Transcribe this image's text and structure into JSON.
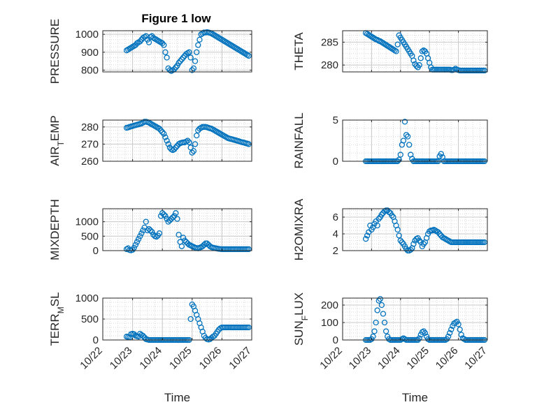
{
  "figure": {
    "title": "Figure 1 low",
    "xlabel": "Time",
    "marker_color": "#0072BD",
    "x_ticks": [
      "10/22",
      "10/23",
      "10/24",
      "10/25",
      "10/26",
      "10/27"
    ]
  },
  "chart_data": [
    {
      "type": "scatter",
      "ylabel": "PRESSURE",
      "ylim": [
        790,
        1020
      ],
      "yticks": [
        800,
        900,
        1000
      ],
      "grid": true,
      "x_unit": "days since 10/22",
      "x": [
        0.8,
        0.85,
        0.9,
        0.95,
        1.0,
        1.05,
        1.1,
        1.15,
        1.2,
        1.25,
        1.3,
        1.35,
        1.4,
        1.45,
        1.5,
        1.55,
        1.6,
        1.65,
        1.7,
        1.75,
        1.8,
        1.85,
        1.9,
        1.95,
        2.0,
        2.05,
        2.1,
        2.15,
        2.2,
        2.25,
        2.3,
        2.35,
        2.4,
        2.45,
        2.5,
        2.55,
        2.6,
        2.65,
        2.7,
        2.75,
        2.8,
        2.85,
        2.9,
        2.95,
        3.0,
        3.05,
        3.1,
        3.15,
        3.2,
        3.25,
        3.3,
        3.35,
        3.4,
        3.45,
        3.5,
        3.55,
        3.6,
        3.65,
        3.7,
        3.75,
        3.8,
        3.85,
        3.9,
        3.95,
        4.0,
        4.05,
        4.1,
        4.15,
        4.2,
        4.25,
        4.3,
        4.35,
        4.4,
        4.45,
        4.5,
        4.55,
        4.6,
        4.65,
        4.7,
        4.75,
        4.8,
        4.85,
        4.9
      ],
      "y": [
        910,
        915,
        920,
        925,
        930,
        935,
        940,
        950,
        955,
        960,
        970,
        980,
        985,
        990,
        970,
        955,
        985,
        990,
        980,
        975,
        970,
        965,
        960,
        955,
        950,
        940,
        900,
        870,
        810,
        800,
        795,
        800,
        805,
        815,
        825,
        840,
        850,
        860,
        870,
        880,
        890,
        895,
        900,
        870,
        800,
        810,
        850,
        900,
        940,
        970,
        1000,
        1005,
        1010,
        1010,
        1012,
        1010,
        1008,
        1005,
        1000,
        995,
        990,
        985,
        980,
        975,
        970,
        965,
        960,
        955,
        950,
        945,
        940,
        935,
        930,
        925,
        920,
        915,
        910,
        905,
        900,
        895,
        890,
        885,
        880
      ]
    },
    {
      "type": "scatter",
      "ylabel": "THETA",
      "ylim": [
        278.5,
        287.5
      ],
      "yticks": [
        280,
        285
      ],
      "grid": true,
      "x": [
        0.8,
        0.85,
        0.9,
        0.95,
        1.0,
        1.05,
        1.1,
        1.15,
        1.2,
        1.25,
        1.3,
        1.35,
        1.4,
        1.45,
        1.5,
        1.55,
        1.6,
        1.65,
        1.7,
        1.75,
        1.8,
        1.85,
        1.9,
        1.95,
        2.0,
        2.05,
        2.1,
        2.15,
        2.2,
        2.25,
        2.3,
        2.35,
        2.4,
        2.45,
        2.5,
        2.55,
        2.6,
        2.65,
        2.7,
        2.75,
        2.8,
        2.85,
        2.9,
        2.95,
        3.0,
        3.05,
        3.1,
        3.15,
        3.2,
        3.25,
        3.3,
        3.35,
        3.4,
        3.45,
        3.5,
        3.55,
        3.6,
        3.65,
        3.7,
        3.75,
        3.8,
        3.85,
        3.9,
        3.95,
        4.0,
        4.05,
        4.1,
        4.15,
        4.2,
        4.25,
        4.3,
        4.35,
        4.4,
        4.45,
        4.5,
        4.55,
        4.6,
        4.65,
        4.7,
        4.75,
        4.8,
        4.85,
        4.9
      ],
      "y": [
        287.0,
        286.8,
        286.6,
        286.4,
        286.2,
        286.0,
        285.8,
        285.6,
        285.5,
        285.3,
        285.2,
        285.0,
        284.8,
        284.6,
        284.4,
        284.2,
        284.0,
        283.8,
        283.6,
        283.4,
        283.2,
        283.0,
        284.5,
        286.5,
        286.0,
        285.5,
        285.0,
        284.5,
        284.0,
        283.5,
        283.0,
        282.5,
        282.0,
        281.0,
        280.2,
        279.8,
        279.5,
        280.0,
        281.5,
        283.0,
        283.2,
        283.0,
        282.5,
        281.5,
        280.5,
        279.5,
        279.0,
        279.0,
        279.0,
        279.0,
        279.0,
        279.0,
        279.0,
        279.0,
        279.0,
        279.0,
        279.0,
        279.0,
        279.0,
        278.9,
        278.9,
        279.0,
        279.2,
        279.0,
        278.9,
        278.8,
        278.8,
        278.8,
        278.8,
        278.8,
        278.8,
        278.8,
        278.8,
        278.8,
        278.8,
        278.8,
        278.8,
        278.8,
        278.8,
        278.8,
        278.8,
        278.8,
        278.8
      ]
    },
    {
      "type": "scatter",
      "ylabel": "AIR_TEMP",
      "ylim": [
        260,
        284
      ],
      "yticks": [
        260,
        270,
        280
      ],
      "grid": true,
      "x": [
        0.8,
        0.85,
        0.9,
        0.95,
        1.0,
        1.05,
        1.1,
        1.15,
        1.2,
        1.25,
        1.3,
        1.35,
        1.4,
        1.45,
        1.5,
        1.55,
        1.6,
        1.65,
        1.7,
        1.75,
        1.8,
        1.85,
        1.9,
        1.95,
        2.0,
        2.05,
        2.1,
        2.15,
        2.2,
        2.25,
        2.3,
        2.35,
        2.4,
        2.45,
        2.5,
        2.55,
        2.6,
        2.65,
        2.7,
        2.75,
        2.8,
        2.85,
        2.9,
        2.95,
        3.0,
        3.05,
        3.1,
        3.15,
        3.2,
        3.25,
        3.3,
        3.35,
        3.4,
        3.45,
        3.5,
        3.55,
        3.6,
        3.65,
        3.7,
        3.75,
        3.8,
        3.85,
        3.9,
        3.95,
        4.0,
        4.05,
        4.1,
        4.15,
        4.2,
        4.25,
        4.3,
        4.35,
        4.4,
        4.45,
        4.5,
        4.55,
        4.6,
        4.65,
        4.7,
        4.75,
        4.8,
        4.85,
        4.9
      ],
      "y": [
        279.5,
        279.7,
        280.0,
        280.3,
        280.5,
        280.8,
        281.0,
        281.3,
        281.5,
        281.8,
        282.0,
        282.5,
        283.0,
        283.0,
        282.8,
        282.5,
        282.0,
        281.5,
        281.0,
        280.5,
        280.0,
        279.5,
        279.0,
        278.0,
        277.0,
        276.0,
        274.0,
        272.0,
        270.0,
        268.0,
        267.0,
        266.5,
        267.0,
        268.0,
        269.0,
        270.0,
        270.5,
        270.8,
        271.0,
        271.0,
        271.5,
        272.0,
        271.0,
        268.0,
        265.0,
        266.0,
        270.0,
        275.0,
        278.0,
        279.0,
        279.5,
        280.0,
        280.0,
        280.0,
        279.8,
        279.5,
        279.2,
        279.0,
        278.5,
        278.0,
        277.5,
        277.0,
        276.5,
        276.0,
        275.5,
        275.0,
        274.5,
        274.0,
        273.5,
        273.2,
        273.0,
        272.8,
        272.5,
        272.3,
        272.0,
        271.8,
        271.5,
        271.2,
        271.0,
        270.8,
        270.5,
        270.3,
        270.0
      ]
    },
    {
      "type": "scatter",
      "ylabel": "RAINFALL",
      "ylim": [
        0,
        5
      ],
      "yticks": [
        0,
        5
      ],
      "grid": true,
      "x": [
        0.8,
        0.85,
        0.9,
        0.95,
        1.0,
        1.05,
        1.1,
        1.15,
        1.2,
        1.25,
        1.3,
        1.35,
        1.4,
        1.45,
        1.5,
        1.55,
        1.6,
        1.65,
        1.7,
        1.75,
        1.8,
        1.85,
        1.9,
        1.95,
        2.0,
        2.05,
        2.1,
        2.15,
        2.2,
        2.25,
        2.3,
        2.35,
        2.4,
        2.45,
        2.5,
        2.55,
        2.6,
        2.65,
        2.7,
        2.75,
        2.8,
        2.85,
        2.9,
        2.95,
        3.0,
        3.05,
        3.1,
        3.15,
        3.2,
        3.25,
        3.3,
        3.35,
        3.4,
        3.45,
        3.5,
        3.55,
        3.6,
        3.65,
        3.7,
        3.75,
        3.8,
        3.85,
        3.9,
        3.95,
        4.0,
        4.05,
        4.1,
        4.15,
        4.2,
        4.25,
        4.3,
        4.35,
        4.4,
        4.45,
        4.5,
        4.55,
        4.6,
        4.65,
        4.7,
        4.75,
        4.8,
        4.85,
        4.9
      ],
      "y": [
        0,
        0,
        0,
        0,
        0,
        0,
        0,
        0,
        0,
        0,
        0,
        0,
        0,
        0,
        0,
        0,
        0,
        0,
        0,
        0,
        0,
        0,
        0,
        0.2,
        0.8,
        2.0,
        2.5,
        4.8,
        3.2,
        3.0,
        2.0,
        0.8,
        0.3,
        0,
        0,
        0,
        0,
        0,
        0,
        0,
        0,
        0,
        0,
        0,
        0,
        0,
        0,
        0,
        0,
        0,
        0,
        0.6,
        0.9,
        0.5,
        0,
        0,
        0,
        0,
        0,
        0,
        0,
        0,
        0,
        0,
        0,
        0,
        0,
        0,
        0,
        0,
        0,
        0,
        0,
        0,
        0,
        0,
        0,
        0,
        0,
        0,
        0,
        0,
        0
      ]
    },
    {
      "type": "scatter",
      "ylabel": "MIXDEPTH",
      "ylim": [
        0,
        1450
      ],
      "yticks": [
        0,
        500,
        1000
      ],
      "grid": true,
      "x": [
        0.8,
        0.85,
        0.9,
        0.95,
        1.0,
        1.05,
        1.1,
        1.15,
        1.2,
        1.25,
        1.3,
        1.35,
        1.4,
        1.45,
        1.5,
        1.55,
        1.6,
        1.65,
        1.7,
        1.75,
        1.8,
        1.85,
        1.9,
        1.95,
        2.0,
        2.05,
        2.1,
        2.15,
        2.2,
        2.25,
        2.3,
        2.35,
        2.4,
        2.45,
        2.5,
        2.55,
        2.6,
        2.65,
        2.7,
        2.75,
        2.8,
        2.85,
        2.9,
        2.95,
        3.0,
        3.05,
        3.1,
        3.15,
        3.2,
        3.25,
        3.3,
        3.35,
        3.4,
        3.45,
        3.5,
        3.55,
        3.6,
        3.65,
        3.7,
        3.75,
        3.8,
        3.85,
        3.9,
        3.95,
        4.0,
        4.05,
        4.1,
        4.15,
        4.2,
        4.25,
        4.3,
        4.35,
        4.4,
        4.45,
        4.5,
        4.55,
        4.6,
        4.65,
        4.7,
        4.75,
        4.8,
        4.85,
        4.9
      ],
      "y": [
        50,
        80,
        20,
        10,
        30,
        100,
        200,
        300,
        400,
        500,
        600,
        700,
        800,
        1000,
        700,
        750,
        700,
        650,
        550,
        500,
        480,
        520,
        600,
        1200,
        1300,
        1250,
        1200,
        1100,
        1000,
        1050,
        1100,
        1150,
        1200,
        1300,
        1100,
        550,
        300,
        150,
        450,
        350,
        300,
        250,
        200,
        180,
        150,
        130,
        100,
        90,
        80,
        100,
        120,
        150,
        200,
        250,
        250,
        200,
        150,
        120,
        100,
        90,
        80,
        70,
        60,
        55,
        50,
        50,
        50,
        50,
        50,
        50,
        50,
        50,
        50,
        50,
        50,
        50,
        50,
        50,
        50,
        50,
        50,
        50,
        50
      ]
    },
    {
      "type": "scatter",
      "ylabel": "H2OMIXRA",
      "ylim": [
        2,
        7
      ],
      "yticks": [
        2,
        4,
        6
      ],
      "grid": true,
      "x": [
        0.8,
        0.85,
        0.9,
        0.95,
        1.0,
        1.05,
        1.1,
        1.15,
        1.2,
        1.25,
        1.3,
        1.35,
        1.4,
        1.45,
        1.5,
        1.55,
        1.6,
        1.65,
        1.7,
        1.75,
        1.8,
        1.85,
        1.9,
        1.95,
        2.0,
        2.05,
        2.1,
        2.15,
        2.2,
        2.25,
        2.3,
        2.35,
        2.4,
        2.45,
        2.5,
        2.55,
        2.6,
        2.65,
        2.7,
        2.75,
        2.8,
        2.85,
        2.9,
        2.95,
        3.0,
        3.05,
        3.1,
        3.15,
        3.2,
        3.25,
        3.3,
        3.35,
        3.4,
        3.45,
        3.5,
        3.55,
        3.6,
        3.65,
        3.7,
        3.75,
        3.8,
        3.85,
        3.9,
        3.95,
        4.0,
        4.05,
        4.1,
        4.15,
        4.2,
        4.25,
        4.3,
        4.35,
        4.4,
        4.45,
        4.5,
        4.55,
        4.6,
        4.65,
        4.7,
        4.75,
        4.8,
        4.85,
        4.9
      ],
      "y": [
        3.4,
        3.8,
        4.2,
        5.0,
        4.5,
        4.8,
        5.2,
        5.5,
        5.0,
        5.8,
        6.0,
        6.3,
        6.5,
        6.7,
        6.8,
        6.8,
        6.6,
        6.5,
        6.2,
        6.0,
        5.5,
        5.0,
        4.5,
        3.8,
        3.2,
        3.0,
        2.8,
        2.5,
        2.2,
        2.0,
        2.0,
        2.1,
        2.3,
        2.8,
        3.2,
        3.4,
        3.5,
        3.2,
        3.0,
        2.5,
        2.8,
        3.0,
        3.5,
        4.0,
        4.3,
        4.4,
        4.4,
        4.5,
        4.4,
        4.3,
        4.2,
        4.0,
        3.8,
        3.6,
        3.5,
        3.4,
        3.3,
        3.2,
        3.1,
        3.0,
        3.0,
        3.0,
        3.0,
        3.0,
        3.0,
        3.0,
        3.0,
        3.0,
        3.0,
        3.0,
        3.0,
        3.0,
        3.0,
        3.0,
        3.0,
        3.0,
        3.0,
        3.0,
        3.0,
        3.0,
        3.0,
        3.0,
        3.0
      ]
    },
    {
      "type": "scatter",
      "ylabel": "TERR_MSL",
      "ylim": [
        0,
        1000
      ],
      "yticks": [
        0,
        500,
        1000
      ],
      "grid": true,
      "x": [
        0.8,
        0.85,
        0.9,
        0.95,
        1.0,
        1.05,
        1.1,
        1.15,
        1.2,
        1.25,
        1.3,
        1.35,
        1.4,
        1.45,
        1.5,
        1.55,
        1.6,
        1.65,
        1.7,
        1.75,
        1.8,
        1.85,
        1.9,
        1.95,
        2.0,
        2.05,
        2.1,
        2.15,
        2.2,
        2.25,
        2.3,
        2.35,
        2.4,
        2.45,
        2.5,
        2.55,
        2.6,
        2.65,
        2.7,
        2.75,
        2.8,
        2.85,
        2.9,
        2.95,
        3.0,
        3.05,
        3.1,
        3.15,
        3.2,
        3.25,
        3.3,
        3.35,
        3.4,
        3.45,
        3.5,
        3.55,
        3.6,
        3.65,
        3.7,
        3.75,
        3.8,
        3.85,
        3.9,
        3.95,
        4.0,
        4.05,
        4.1,
        4.15,
        4.2,
        4.25,
        4.3,
        4.35,
        4.4,
        4.45,
        4.5,
        4.55,
        4.6,
        4.65,
        4.7,
        4.75,
        4.8,
        4.85,
        4.9
      ],
      "y": [
        80,
        70,
        60,
        140,
        150,
        140,
        100,
        90,
        80,
        150,
        120,
        100,
        60,
        20,
        10,
        0,
        0,
        0,
        0,
        0,
        0,
        0,
        0,
        0,
        0,
        0,
        0,
        0,
        0,
        0,
        0,
        0,
        0,
        0,
        0,
        0,
        0,
        0,
        0,
        0,
        0,
        0,
        0,
        500,
        850,
        800,
        700,
        600,
        500,
        400,
        300,
        200,
        100,
        50,
        20,
        10,
        20,
        50,
        80,
        100,
        150,
        200,
        250,
        280,
        300,
        300,
        300,
        300,
        300,
        300,
        300,
        300,
        300,
        300,
        300,
        300,
        300,
        300,
        300,
        300,
        300,
        300,
        300
      ]
    },
    {
      "type": "scatter",
      "ylabel": "SUN_FLUX",
      "ylim": [
        0,
        240
      ],
      "yticks": [
        0,
        100,
        200
      ],
      "grid": true,
      "x": [
        0.8,
        0.85,
        0.9,
        0.95,
        1.0,
        1.05,
        1.1,
        1.15,
        1.2,
        1.25,
        1.3,
        1.35,
        1.4,
        1.45,
        1.5,
        1.55,
        1.6,
        1.65,
        1.7,
        1.75,
        1.8,
        1.85,
        1.9,
        1.95,
        2.0,
        2.05,
        2.1,
        2.15,
        2.2,
        2.25,
        2.3,
        2.35,
        2.4,
        2.45,
        2.5,
        2.55,
        2.6,
        2.65,
        2.7,
        2.75,
        2.8,
        2.85,
        2.9,
        2.95,
        3.0,
        3.05,
        3.1,
        3.15,
        3.2,
        3.25,
        3.3,
        3.35,
        3.4,
        3.45,
        3.5,
        3.55,
        3.6,
        3.65,
        3.7,
        3.75,
        3.8,
        3.85,
        3.9,
        3.95,
        4.0,
        4.05,
        4.1,
        4.15,
        4.2,
        4.25,
        4.3,
        4.35,
        4.4,
        4.45,
        4.5,
        4.55,
        4.6,
        4.65,
        4.7,
        4.75,
        4.8,
        4.85,
        4.9
      ],
      "y": [
        0,
        0,
        0,
        0,
        5,
        20,
        50,
        100,
        170,
        225,
        235,
        200,
        150,
        100,
        50,
        20,
        5,
        0,
        0,
        0,
        0,
        0,
        0,
        0,
        0,
        5,
        10,
        5,
        0,
        0,
        0,
        0,
        0,
        0,
        0,
        0,
        0,
        10,
        30,
        45,
        50,
        40,
        20,
        5,
        0,
        0,
        0,
        0,
        0,
        0,
        0,
        0,
        0,
        0,
        0,
        0,
        5,
        20,
        40,
        60,
        80,
        95,
        100,
        105,
        90,
        60,
        30,
        10,
        5,
        0,
        0,
        0,
        0,
        0,
        0,
        0,
        0,
        0,
        0,
        0,
        0,
        0,
        0
      ]
    }
  ]
}
